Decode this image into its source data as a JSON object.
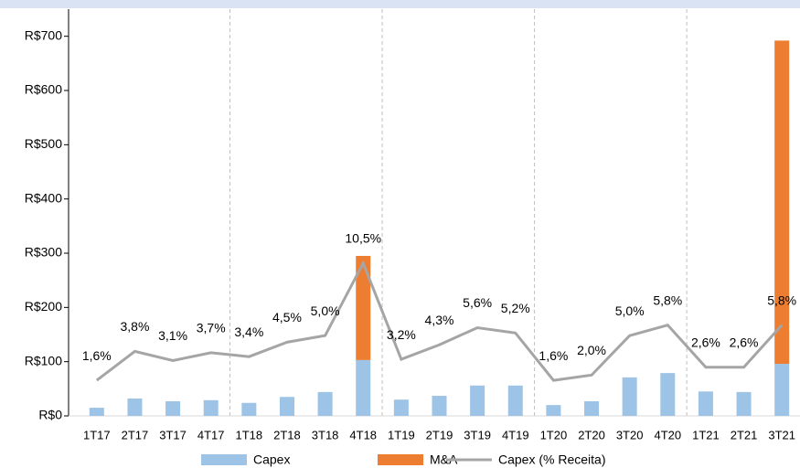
{
  "chart_data": {
    "type": "bar",
    "stacked": true,
    "categories": [
      "1T17",
      "2T17",
      "3T17",
      "4T17",
      "1T18",
      "2T18",
      "3T18",
      "4T18",
      "1T19",
      "2T19",
      "3T19",
      "4T19",
      "1T20",
      "2T20",
      "3T20",
      "4T20",
      "1T21",
      "2T21",
      "3T21"
    ],
    "series": [
      {
        "name": "Capex",
        "color": "#9dc3e6",
        "type": "bar",
        "values": [
          15,
          32,
          27,
          29,
          24,
          35,
          44,
          103,
          30,
          37,
          56,
          56,
          20,
          27,
          71,
          79,
          45,
          44,
          96
        ]
      },
      {
        "name": "M&A",
        "color": "#ed7d31",
        "type": "bar",
        "values": [
          0,
          0,
          0,
          0,
          0,
          0,
          0,
          192,
          0,
          0,
          0,
          0,
          0,
          0,
          0,
          0,
          0,
          0,
          596
        ]
      },
      {
        "name": "Capex (% Receita)",
        "color": "#a5a5a5",
        "type": "line",
        "axis": "y2",
        "values": [
          1.6,
          3.8,
          3.1,
          3.7,
          3.4,
          4.5,
          5.0,
          10.5,
          3.2,
          4.3,
          5.6,
          5.2,
          1.6,
          2.0,
          5.0,
          5.8,
          2.6,
          2.6,
          5.8
        ],
        "value_labels": [
          "1,6%",
          "3,8%",
          "3,1%",
          "3,7%",
          "3,4%",
          "4,5%",
          "5,0%",
          "10,5%",
          "3,2%",
          "4,3%",
          "5,6%",
          "5,2%",
          "1,6%",
          "2,0%",
          "5,0%",
          "5,8%",
          "2,6%",
          "2,6%",
          "5,8%"
        ]
      }
    ],
    "ylim": [
      0,
      750
    ],
    "yticks": [
      {
        "value": 0,
        "label": "R$0"
      },
      {
        "value": 100,
        "label": "R$100"
      },
      {
        "value": 200,
        "label": "R$200"
      },
      {
        "value": 300,
        "label": "R$300"
      },
      {
        "value": 400,
        "label": "R$400"
      },
      {
        "value": 500,
        "label": "R$500"
      },
      {
        "value": 600,
        "label": "R$600"
      },
      {
        "value": 700,
        "label": "R$700"
      }
    ],
    "y2lim": [
      -1.1,
      29.8
    ],
    "legend": "bottom"
  }
}
